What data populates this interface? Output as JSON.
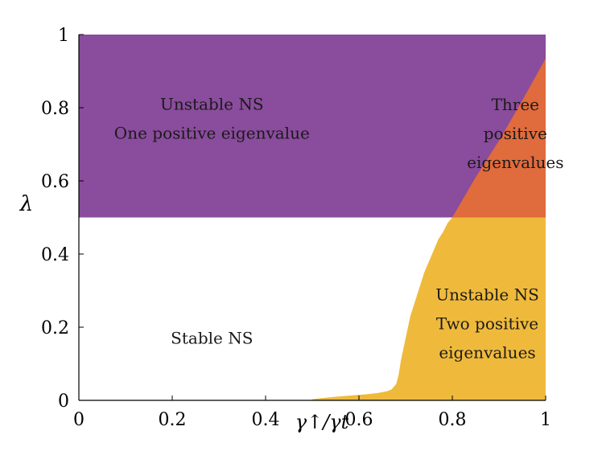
{
  "chart_data": {
    "type": "area",
    "title": "",
    "xlabel": "γ↑/γt",
    "ylabel": "λ",
    "xlim": [
      0,
      1
    ],
    "ylim": [
      0,
      1
    ],
    "grid": false,
    "x_ticks": [
      0,
      0.2,
      0.4,
      0.6,
      0.8,
      1
    ],
    "y_ticks": [
      0,
      0.2,
      0.4,
      0.6,
      0.8,
      1
    ],
    "x_tick_labels": [
      "0",
      "0.2",
      "0.4",
      "0.6",
      "0.8",
      "1"
    ],
    "y_tick_labels": [
      "0",
      "0.2",
      "0.4",
      "0.6",
      "0.8",
      "1"
    ],
    "threshold_lambda": 0.5,
    "colors": {
      "unstable_one": "#8a4c9c",
      "unstable_three": "#e06b3c",
      "unstable_two": "#efba3c"
    },
    "regions": [
      {
        "name": "Stable NS",
        "lines": [
          "Stable NS"
        ],
        "label_at": [
          0.285,
          0.17
        ]
      },
      {
        "name": "Unstable NS, one positive eigenvalue",
        "lines": [
          "Unstable NS",
          "One positive eigenvalue"
        ],
        "label_at": [
          0.285,
          0.77
        ]
      },
      {
        "name": "Three positive eigenvalues",
        "lines": [
          "Three",
          "positive",
          "eigenvalues"
        ],
        "label_at": [
          0.935,
          0.73
        ]
      },
      {
        "name": "Unstable NS, two positive eigenvalues",
        "lines": [
          "Unstable NS",
          "Two positive",
          "eigenvalues"
        ],
        "label_at": [
          0.875,
          0.21
        ]
      }
    ],
    "boundary_lower": {
      "x": [
        0.5,
        0.52,
        0.55,
        0.58,
        0.6,
        0.62,
        0.64,
        0.66,
        0.67,
        0.68,
        0.685,
        0.69,
        0.7,
        0.71,
        0.72,
        0.73,
        0.74,
        0.75,
        0.76,
        0.77,
        0.78,
        0.79,
        0.8
      ],
      "y": [
        0.003,
        0.006,
        0.01,
        0.013,
        0.015,
        0.017,
        0.02,
        0.025,
        0.03,
        0.045,
        0.07,
        0.11,
        0.17,
        0.23,
        0.27,
        0.31,
        0.35,
        0.38,
        0.41,
        0.44,
        0.46,
        0.485,
        0.5
      ]
    },
    "boundary_upper": {
      "x": [
        0.8,
        0.85,
        0.9,
        0.95,
        1.0
      ],
      "y": [
        0.5,
        0.61,
        0.71,
        0.82,
        0.935
      ]
    }
  }
}
